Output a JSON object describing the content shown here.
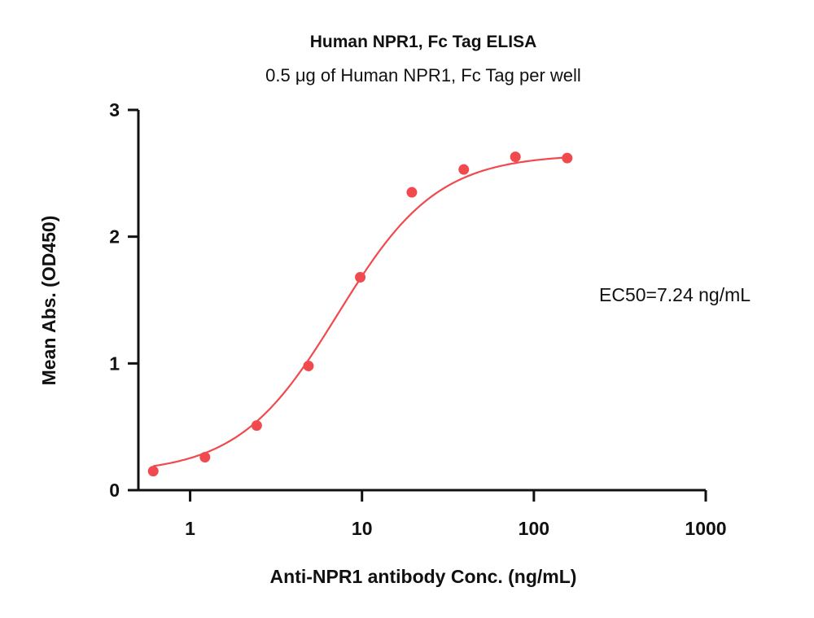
{
  "chart_data": {
    "type": "scatter",
    "title": "Human NPR1, Fc Tag ELISA",
    "subtitle": "0.5 μg of Human NPR1, Fc Tag per well",
    "xlabel": "Anti-NPR1 antibody Conc. (ng/mL)",
    "ylabel": "Mean Abs. (OD450)",
    "x_scale": "log",
    "xlim": [
      0.5,
      1000
    ],
    "ylim": [
      0,
      3
    ],
    "x_ticks": [
      1,
      10,
      100,
      1000
    ],
    "x_tick_labels": [
      "1",
      "10",
      "100",
      "1000"
    ],
    "y_ticks": [
      0,
      1,
      2,
      3
    ],
    "y_tick_labels": [
      "0",
      "1",
      "2",
      "3"
    ],
    "grid": false,
    "color": "#f04a4f",
    "series": [
      {
        "x": [
          0.61,
          1.22,
          2.44,
          4.88,
          9.77,
          19.5,
          39.1,
          78.1,
          156.3
        ],
        "y": [
          0.15,
          0.26,
          0.51,
          0.98,
          1.68,
          2.35,
          2.53,
          2.63,
          2.62
        ]
      }
    ],
    "fit": {
      "model": "4PL",
      "bottom": 0.13,
      "top": 2.65,
      "ec50": 7.24,
      "hill": 1.5,
      "x_range": [
        0.61,
        156.3
      ]
    },
    "annotation": "EC50=7.24 ng/mL"
  }
}
